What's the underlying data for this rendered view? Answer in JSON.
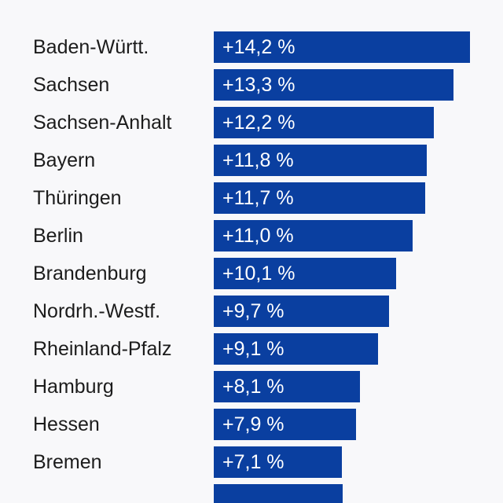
{
  "chart_data": {
    "type": "bar",
    "orientation": "horizontal",
    "title": "",
    "xlabel": "",
    "ylabel": "",
    "xlim": [
      0,
      14.2
    ],
    "grid": false,
    "legend": "none",
    "bar_color": "#0a3fa0",
    "categories": [
      "Baden-Württ.",
      "Sachsen",
      "Sachsen-Anhalt",
      "Bayern",
      "Thüringen",
      "Berlin",
      "Brandenburg",
      "Nordrh.-Westf.",
      "Rheinland-Pfalz",
      "Hamburg",
      "Hessen",
      "Bremen"
    ],
    "values": [
      14.2,
      13.3,
      12.2,
      11.8,
      11.7,
      11.0,
      10.1,
      9.7,
      9.1,
      8.1,
      7.9,
      7.1
    ],
    "data_labels": [
      "+14,2 %",
      "+13,3 %",
      "+12,2 %",
      "+11,8 %",
      "+11,7 %",
      "+11,0 %",
      "+10,1 %",
      "+9,7 %",
      "+9,1 %",
      "+8,1 %",
      "+7,9 %",
      "+7,1 %"
    ]
  }
}
